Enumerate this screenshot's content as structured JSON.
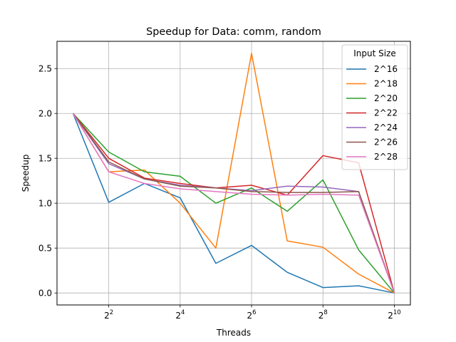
{
  "chart_data": {
    "type": "line",
    "title": "Speedup for Data: comm, random",
    "xlabel": "Threads",
    "ylabel": "Speedup",
    "xscale": "log2",
    "xlim": [
      2,
      1024
    ],
    "ylim": [
      0,
      2.5
    ],
    "grid": true,
    "legend_title": "Input Size",
    "legend_position": "top-right",
    "x": [
      2,
      4,
      8,
      16,
      32,
      64,
      128,
      256,
      512,
      1024
    ],
    "x_ticks": [
      4,
      16,
      64,
      256,
      1024
    ],
    "x_tick_labels": [
      {
        "base": "2",
        "exp": "2"
      },
      {
        "base": "2",
        "exp": "4"
      },
      {
        "base": "2",
        "exp": "6"
      },
      {
        "base": "2",
        "exp": "8"
      },
      {
        "base": "2",
        "exp": "10"
      }
    ],
    "y_ticks": [
      0.0,
      0.5,
      1.0,
      1.5,
      2.0,
      2.5
    ],
    "y_tick_labels": [
      "0.0",
      "0.5",
      "1.0",
      "1.5",
      "2.0",
      "2.5"
    ],
    "series": [
      {
        "name": "2^16",
        "color": "#1f77b4",
        "values": [
          2.0,
          1.01,
          1.22,
          1.06,
          0.33,
          0.53,
          0.23,
          0.06,
          0.08,
          0.0
        ]
      },
      {
        "name": "2^18",
        "color": "#ff7f0e",
        "values": [
          2.0,
          1.35,
          1.37,
          1.0,
          0.5,
          2.67,
          0.58,
          0.51,
          0.21,
          0.0
        ]
      },
      {
        "name": "2^20",
        "color": "#2ca02c",
        "values": [
          2.0,
          1.57,
          1.35,
          1.3,
          1.0,
          1.17,
          0.91,
          1.26,
          0.48,
          0.0
        ]
      },
      {
        "name": "2^22",
        "color": "#d62728",
        "values": [
          2.0,
          1.5,
          1.28,
          1.22,
          1.17,
          1.2,
          1.09,
          1.53,
          1.45,
          0.0
        ]
      },
      {
        "name": "2^24",
        "color": "#9467bd",
        "values": [
          2.0,
          1.44,
          1.27,
          1.2,
          1.17,
          1.14,
          1.19,
          1.18,
          1.13,
          0.0
        ]
      },
      {
        "name": "2^26",
        "color": "#8c564b",
        "values": [
          2.0,
          1.46,
          1.27,
          1.19,
          1.17,
          1.13,
          1.12,
          1.12,
          1.13,
          0.0
        ]
      },
      {
        "name": "2^28",
        "color": "#e377c2",
        "values": [
          2.0,
          1.35,
          1.22,
          1.16,
          1.13,
          1.1,
          1.09,
          1.1,
          1.09,
          0.0
        ]
      }
    ]
  }
}
